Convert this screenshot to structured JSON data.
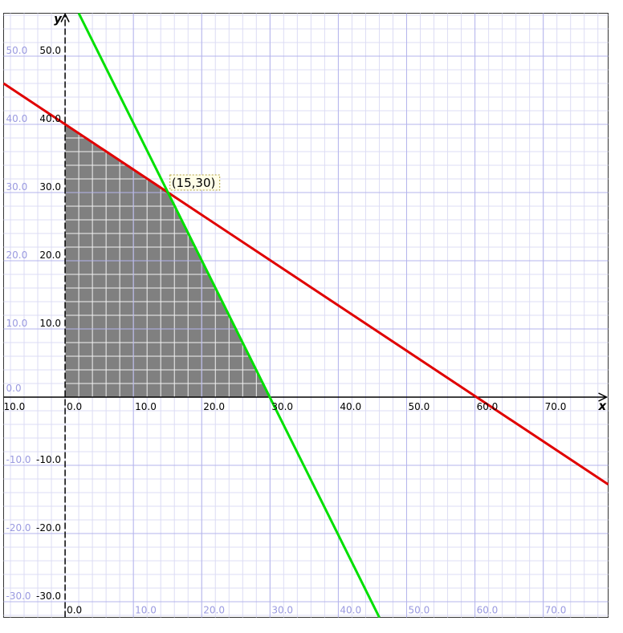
{
  "chart_data": {
    "type": "line",
    "xlabel": "x",
    "ylabel": "y",
    "xlim": [
      -9.0,
      79.5
    ],
    "ylim": [
      -32.3,
      56.3
    ],
    "grid": true,
    "x_axis_ticks": [
      "10.0",
      "0.0",
      "10.0",
      "20.0",
      "30.0",
      "40.0",
      "50.0",
      "60.0",
      "70.0"
    ],
    "y_axis_ticks": [
      "50.0",
      "40.0",
      "30.0",
      "20.0",
      "10.0",
      "-10.0",
      "-20.0",
      "-30.0"
    ],
    "left_margin_ticks": [
      "50.0",
      "40.0",
      "30.0",
      "20.0",
      "10.0",
      "0.0",
      "-10.0",
      "-20.0",
      "-30.0"
    ],
    "bottom_margin_ticks": [
      "0.0",
      "10.0",
      "20.0",
      "30.0",
      "40.0",
      "50.0",
      "60.0",
      "70.0"
    ],
    "series": [
      {
        "color": "#e00000",
        "points": [
          [
            -9.0,
            46.0
          ],
          [
            79.5,
            -12.8
          ]
        ]
      },
      {
        "color": "#00e000",
        "points": [
          [
            2.0,
            56.3
          ],
          [
            46.0,
            -32.3
          ]
        ]
      }
    ],
    "feasible_region": {
      "color": "#808080",
      "vertices": [
        [
          0,
          0
        ],
        [
          0,
          40
        ],
        [
          15,
          30
        ],
        [
          30,
          0
        ]
      ]
    },
    "annotations": [
      {
        "text": "(15,30)",
        "x": 15,
        "y": 30
      }
    ]
  }
}
